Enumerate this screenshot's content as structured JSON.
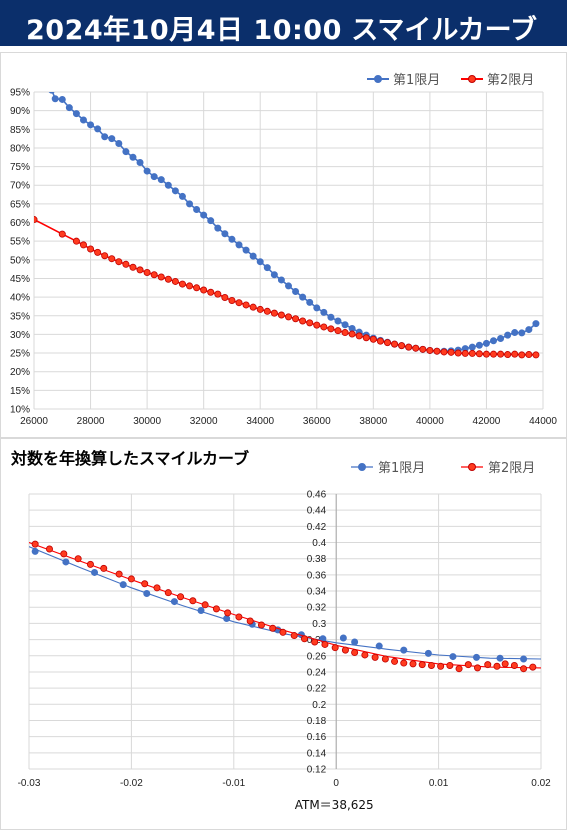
{
  "header": {
    "datetime": "2024年10月4日 10:00",
    "subtitle": "スマイルカーブ"
  },
  "colors": {
    "header_bg": "#0b2f6b",
    "series1": "#4472c4",
    "series2": "#ff0000",
    "series2_fill": "#ff3b1f"
  },
  "chart_data": [
    {
      "type": "line",
      "title": "",
      "xlabel": "",
      "ylabel": "",
      "xlim": [
        26000,
        44000
      ],
      "ylim": [
        10,
        95
      ],
      "x_ticks": [
        26000,
        28000,
        30000,
        32000,
        34000,
        36000,
        38000,
        40000,
        42000,
        44000
      ],
      "y_ticks": [
        "10%",
        "15%",
        "20%",
        "25%",
        "30%",
        "35%",
        "40%",
        "45%",
        "50%",
        "55%",
        "60%",
        "65%",
        "70%",
        "75%",
        "80%",
        "85%",
        "90%",
        "95%"
      ],
      "legend_position": "top-right",
      "grid": true,
      "series": [
        {
          "name": "第1限月",
          "color": "#4472c4",
          "points": [
            [
              26625,
              95.5
            ],
            [
              26750,
              93.2
            ],
            [
              27000,
              93.0
            ],
            [
              27250,
              90.8
            ],
            [
              27500,
              89.2
            ],
            [
              27750,
              87.5
            ],
            [
              28000,
              86.2
            ],
            [
              28250,
              85.1
            ],
            [
              28500,
              83.0
            ],
            [
              28750,
              82.5
            ],
            [
              29000,
              81.2
            ],
            [
              29250,
              79.0
            ],
            [
              29500,
              77.5
            ],
            [
              29750,
              76.1
            ],
            [
              30000,
              73.8
            ],
            [
              30250,
              72.3
            ],
            [
              30500,
              71.5
            ],
            [
              30750,
              70.0
            ],
            [
              31000,
              68.5
            ],
            [
              31250,
              67.0
            ],
            [
              31500,
              65.0
            ],
            [
              31750,
              63.5
            ],
            [
              32000,
              62.0
            ],
            [
              32250,
              60.5
            ],
            [
              32500,
              58.5
            ],
            [
              32750,
              57.0
            ],
            [
              33000,
              55.5
            ],
            [
              33250,
              54.0
            ],
            [
              33500,
              52.6
            ],
            [
              33750,
              51.0
            ],
            [
              34000,
              49.5
            ],
            [
              34250,
              47.9
            ],
            [
              34500,
              46.0
            ],
            [
              34750,
              44.6
            ],
            [
              35000,
              43.0
            ],
            [
              35250,
              41.5
            ],
            [
              35500,
              40.0
            ],
            [
              35750,
              38.6
            ],
            [
              36000,
              37.1
            ],
            [
              36250,
              35.9
            ],
            [
              36500,
              34.6
            ],
            [
              36750,
              33.6
            ],
            [
              37000,
              32.6
            ],
            [
              37250,
              31.6
            ],
            [
              37500,
              30.6
            ],
            [
              37750,
              29.8
            ],
            [
              38000,
              29.0
            ],
            [
              38250,
              28.4
            ],
            [
              38500,
              27.9
            ],
            [
              38750,
              27.4
            ],
            [
              39000,
              27.0
            ],
            [
              39250,
              26.6
            ],
            [
              39500,
              26.3
            ],
            [
              39750,
              26.0
            ],
            [
              40000,
              25.7
            ],
            [
              40250,
              25.5
            ],
            [
              40500,
              25.5
            ],
            [
              40750,
              25.6
            ],
            [
              41000,
              25.8
            ],
            [
              41250,
              26.2
            ],
            [
              41500,
              26.6
            ],
            [
              41750,
              27.1
            ],
            [
              42000,
              27.6
            ],
            [
              42250,
              28.3
            ],
            [
              42500,
              28.9
            ],
            [
              42750,
              29.8
            ],
            [
              43000,
              30.5
            ],
            [
              43250,
              30.4
            ],
            [
              43500,
              31.3
            ],
            [
              43750,
              32.9
            ]
          ]
        },
        {
          "name": "第2限月",
          "color": "#ff0000",
          "points": [
            [
              26000,
              60.8
            ],
            [
              27000,
              56.9
            ],
            [
              27500,
              55.0
            ],
            [
              27750,
              54.0
            ],
            [
              28000,
              52.9
            ],
            [
              28250,
              52.0
            ],
            [
              28500,
              51.1
            ],
            [
              28750,
              50.3
            ],
            [
              29000,
              49.5
            ],
            [
              29250,
              48.8
            ],
            [
              29500,
              48.0
            ],
            [
              29750,
              47.3
            ],
            [
              30000,
              46.6
            ],
            [
              30250,
              46.0
            ],
            [
              30500,
              45.4
            ],
            [
              30750,
              44.8
            ],
            [
              31000,
              44.2
            ],
            [
              31250,
              43.5
            ],
            [
              31500,
              43.0
            ],
            [
              31750,
              42.5
            ],
            [
              32000,
              41.9
            ],
            [
              32250,
              41.3
            ],
            [
              32500,
              40.8
            ],
            [
              32750,
              39.9
            ],
            [
              33000,
              39.1
            ],
            [
              33250,
              38.5
            ],
            [
              33500,
              37.9
            ],
            [
              33750,
              37.3
            ],
            [
              34000,
              36.7
            ],
            [
              34250,
              36.2
            ],
            [
              34500,
              35.7
            ],
            [
              34750,
              35.2
            ],
            [
              35000,
              34.7
            ],
            [
              35250,
              34.2
            ],
            [
              35500,
              33.6
            ],
            [
              35750,
              33.1
            ],
            [
              36000,
              32.5
            ],
            [
              36250,
              32.0
            ],
            [
              36500,
              31.5
            ],
            [
              36750,
              31.0
            ],
            [
              37000,
              30.5
            ],
            [
              37250,
              30.1
            ],
            [
              37500,
              29.6
            ],
            [
              37750,
              29.1
            ],
            [
              38000,
              28.7
            ],
            [
              38250,
              28.2
            ],
            [
              38500,
              27.8
            ],
            [
              38750,
              27.4
            ],
            [
              39000,
              27.0
            ],
            [
              39250,
              26.6
            ],
            [
              39500,
              26.3
            ],
            [
              39750,
              26.0
            ],
            [
              40000,
              25.7
            ],
            [
              40250,
              25.5
            ],
            [
              40500,
              25.3
            ],
            [
              40750,
              25.2
            ],
            [
              41000,
              25.0
            ],
            [
              41250,
              24.9
            ],
            [
              41500,
              24.9
            ],
            [
              41750,
              24.8
            ],
            [
              42000,
              24.7
            ],
            [
              42250,
              24.7
            ],
            [
              42500,
              24.7
            ],
            [
              42750,
              24.6
            ],
            [
              43000,
              24.7
            ],
            [
              43250,
              24.5
            ],
            [
              43500,
              24.6
            ],
            [
              43750,
              24.5
            ]
          ]
        }
      ]
    },
    {
      "type": "scatter",
      "title": "対数を年換算したスマイルカーブ",
      "xlabel": "",
      "ylabel": "",
      "xlim": [
        -0.03,
        0.02
      ],
      "ylim": [
        0.12,
        0.46
      ],
      "x_ticks": [
        "-0.03",
        "-0.02",
        "-0.01",
        "0",
        "0.01",
        "0.02"
      ],
      "y_ticks": [
        "0.12",
        "0.14",
        "0.16",
        "0.18",
        "0.2",
        "0.22",
        "0.24",
        "0.26",
        "0.28",
        "0.3",
        "0.32",
        "0.34",
        "0.36",
        "0.38",
        "0.4",
        "0.42",
        "0.44",
        "0.46"
      ],
      "legend_position": "top-right",
      "grid": true,
      "annotation": "ATM＝38,625",
      "series": [
        {
          "name": "第1限月",
          "color": "#4472c4",
          "points": [
            [
              -0.0294,
              0.389
            ],
            [
              -0.0264,
              0.376
            ],
            [
              -0.0236,
              0.363
            ],
            [
              -0.0208,
              0.348
            ],
            [
              -0.0185,
              0.337
            ],
            [
              -0.0158,
              0.327
            ],
            [
              -0.0132,
              0.316
            ],
            [
              -0.0107,
              0.306
            ],
            [
              -0.0082,
              0.299
            ],
            [
              -0.0057,
              0.292
            ],
            [
              -0.0034,
              0.286
            ],
            [
              -0.0013,
              0.281
            ],
            [
              0.0007,
              0.282
            ],
            [
              0.0018,
              0.277
            ],
            [
              0.0042,
              0.272
            ],
            [
              0.0066,
              0.267
            ],
            [
              0.009,
              0.263
            ],
            [
              0.0114,
              0.259
            ],
            [
              0.0137,
              0.258
            ],
            [
              0.016,
              0.257
            ],
            [
              0.0183,
              0.256
            ]
          ],
          "fit_line": [
            [
              -0.03,
              0.395
            ],
            [
              -0.025,
              0.369
            ],
            [
              -0.02,
              0.344
            ],
            [
              -0.015,
              0.322
            ],
            [
              -0.01,
              0.302
            ],
            [
              -0.005,
              0.287
            ],
            [
              0.0,
              0.276
            ],
            [
              0.005,
              0.268
            ],
            [
              0.01,
              0.261
            ],
            [
              0.015,
              0.257
            ],
            [
              0.02,
              0.256
            ]
          ]
        },
        {
          "name": "第2限月",
          "color": "#ff0000",
          "points": [
            [
              -0.0294,
              0.398
            ],
            [
              -0.028,
              0.392
            ],
            [
              -0.0266,
              0.386
            ],
            [
              -0.0252,
              0.38
            ],
            [
              -0.024,
              0.373
            ],
            [
              -0.0227,
              0.368
            ],
            [
              -0.0212,
              0.361
            ],
            [
              -0.02,
              0.355
            ],
            [
              -0.0187,
              0.349
            ],
            [
              -0.0175,
              0.344
            ],
            [
              -0.0164,
              0.338
            ],
            [
              -0.0152,
              0.333
            ],
            [
              -0.014,
              0.328
            ],
            [
              -0.0128,
              0.323
            ],
            [
              -0.0117,
              0.318
            ],
            [
              -0.0106,
              0.313
            ],
            [
              -0.0095,
              0.308
            ],
            [
              -0.0084,
              0.303
            ],
            [
              -0.0073,
              0.298
            ],
            [
              -0.0062,
              0.294
            ],
            [
              -0.0052,
              0.289
            ],
            [
              -0.0041,
              0.285
            ],
            [
              -0.0031,
              0.281
            ],
            [
              -0.0021,
              0.277
            ],
            [
              -0.0011,
              0.274
            ],
            [
              -0.0001,
              0.27
            ],
            [
              0.0009,
              0.267
            ],
            [
              0.0018,
              0.264
            ],
            [
              0.0028,
              0.261
            ],
            [
              0.0038,
              0.258
            ],
            [
              0.0048,
              0.256
            ],
            [
              0.0057,
              0.253
            ],
            [
              0.0066,
              0.251
            ],
            [
              0.0075,
              0.25
            ],
            [
              0.0084,
              0.249
            ],
            [
              0.0093,
              0.248
            ],
            [
              0.0102,
              0.247
            ],
            [
              0.0111,
              0.248
            ],
            [
              0.012,
              0.244
            ],
            [
              0.0129,
              0.249
            ],
            [
              0.0138,
              0.245
            ],
            [
              0.0148,
              0.249
            ],
            [
              0.0157,
              0.247
            ],
            [
              0.0165,
              0.25
            ],
            [
              0.0174,
              0.248
            ],
            [
              0.0183,
              0.244
            ],
            [
              0.0192,
              0.246
            ]
          ],
          "fit_line": [
            [
              -0.03,
              0.4
            ],
            [
              -0.025,
              0.377
            ],
            [
              -0.02,
              0.354
            ],
            [
              -0.015,
              0.332
            ],
            [
              -0.01,
              0.311
            ],
            [
              -0.005,
              0.291
            ],
            [
              0.0,
              0.273
            ],
            [
              0.005,
              0.259
            ],
            [
              0.01,
              0.25
            ],
            [
              0.015,
              0.246
            ],
            [
              0.02,
              0.245
            ]
          ]
        }
      ]
    }
  ]
}
